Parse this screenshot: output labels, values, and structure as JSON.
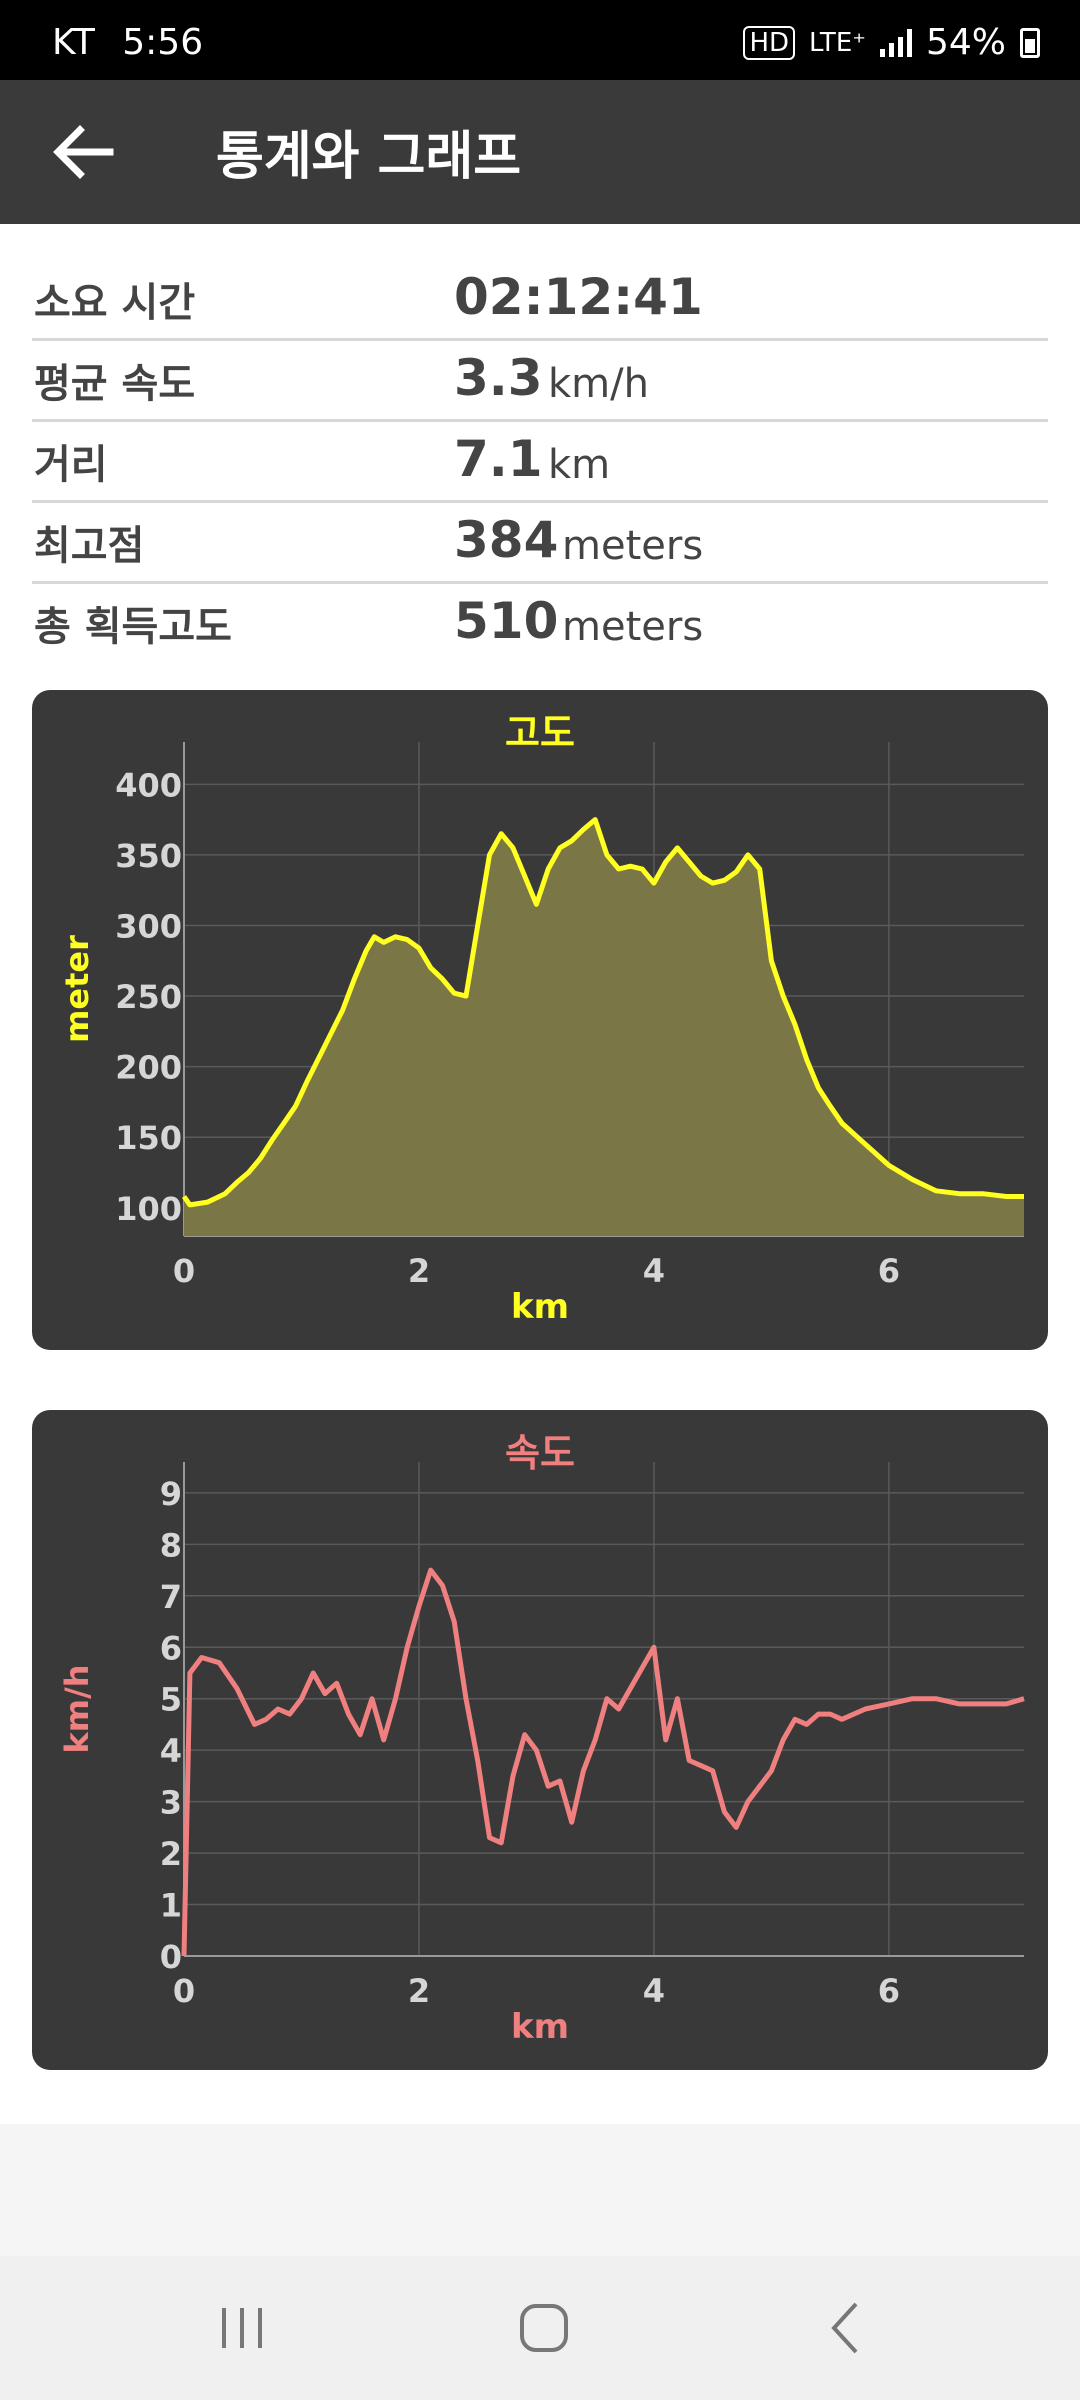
{
  "status_bar": {
    "carrier": "KT",
    "time": "5:56",
    "hd": "HD",
    "network": "LTE⁺",
    "battery": "54%"
  },
  "app_bar": {
    "back_icon": "arrow-left-icon",
    "title": "통계와 그래프"
  },
  "stats": [
    {
      "label": "소요 시간",
      "value": "02:12:41",
      "unit": ""
    },
    {
      "label": "평균 속도",
      "value": "3.3",
      "unit": "km/h"
    },
    {
      "label": "거리",
      "value": "7.1",
      "unit": "km"
    },
    {
      "label": "최고점",
      "value": "384",
      "unit": "meters"
    },
    {
      "label": "총 획득고도",
      "value": "510",
      "unit": "meters"
    }
  ],
  "colors": {
    "elevation_line": "#ffff22",
    "elevation_fill": "#7a7645",
    "speed_line": "#f08080",
    "card_bg": "#393939",
    "app_bar": "#3a3a3a"
  },
  "chart_data": [
    {
      "type": "area",
      "title": "고도",
      "xlabel": "km",
      "ylabel": "meter",
      "xlim": [
        0,
        7.15
      ],
      "ylim": [
        80,
        430
      ],
      "xticks": [
        0,
        2,
        4,
        6
      ],
      "yticks": [
        100,
        150,
        200,
        250,
        300,
        350,
        400
      ],
      "grid": true,
      "x": [
        0,
        0.05,
        0.2,
        0.35,
        0.45,
        0.55,
        0.65,
        0.75,
        0.85,
        0.95,
        1.05,
        1.2,
        1.35,
        1.45,
        1.55,
        1.62,
        1.7,
        1.8,
        1.9,
        2.0,
        2.1,
        2.2,
        2.3,
        2.4,
        2.5,
        2.6,
        2.7,
        2.8,
        2.9,
        3.0,
        3.1,
        3.2,
        3.3,
        3.4,
        3.5,
        3.6,
        3.7,
        3.8,
        3.9,
        4.0,
        4.1,
        4.2,
        4.3,
        4.4,
        4.5,
        4.6,
        4.7,
        4.8,
        4.9,
        5.0,
        5.1,
        5.2,
        5.3,
        5.4,
        5.5,
        5.6,
        5.8,
        6.0,
        6.2,
        6.4,
        6.6,
        6.8,
        7.0,
        7.15
      ],
      "values": [
        108,
        102,
        104,
        110,
        118,
        125,
        135,
        148,
        160,
        172,
        190,
        215,
        240,
        262,
        282,
        292,
        288,
        292,
        290,
        284,
        270,
        262,
        252,
        250,
        300,
        350,
        365,
        355,
        335,
        315,
        340,
        355,
        360,
        368,
        375,
        350,
        340,
        342,
        340,
        330,
        345,
        355,
        345,
        335,
        330,
        332,
        338,
        350,
        340,
        275,
        250,
        230,
        205,
        185,
        172,
        160,
        145,
        130,
        120,
        112,
        110,
        110,
        108,
        108
      ]
    },
    {
      "type": "line",
      "title": "속도",
      "xlabel": "km",
      "ylabel": "km/h",
      "xlim": [
        0,
        7.15
      ],
      "ylim": [
        0,
        9.6
      ],
      "xticks": [
        0,
        2,
        4,
        6
      ],
      "yticks": [
        0,
        1,
        2,
        3,
        4,
        5,
        6,
        7,
        8,
        9
      ],
      "grid": true,
      "x": [
        0,
        0.05,
        0.15,
        0.3,
        0.45,
        0.6,
        0.7,
        0.8,
        0.9,
        1.0,
        1.1,
        1.2,
        1.3,
        1.4,
        1.5,
        1.6,
        1.7,
        1.8,
        1.9,
        2.0,
        2.1,
        2.2,
        2.3,
        2.4,
        2.5,
        2.6,
        2.7,
        2.8,
        2.9,
        3.0,
        3.1,
        3.2,
        3.3,
        3.4,
        3.5,
        3.6,
        3.7,
        3.8,
        3.9,
        4.0,
        4.1,
        4.2,
        4.3,
        4.4,
        4.5,
        4.6,
        4.7,
        4.8,
        4.9,
        5.0,
        5.1,
        5.2,
        5.3,
        5.4,
        5.5,
        5.6,
        5.8,
        6.0,
        6.2,
        6.4,
        6.6,
        6.8,
        7.0,
        7.15
      ],
      "values": [
        0,
        5.5,
        5.8,
        5.7,
        5.2,
        4.5,
        4.6,
        4.8,
        4.7,
        5.0,
        5.5,
        5.1,
        5.3,
        4.7,
        4.3,
        5.0,
        4.2,
        5.0,
        6.0,
        6.8,
        7.5,
        7.2,
        6.5,
        5.0,
        3.8,
        2.3,
        2.2,
        3.5,
        4.3,
        4.0,
        3.3,
        3.4,
        2.6,
        3.6,
        4.2,
        5.0,
        4.8,
        5.2,
        5.6,
        6.0,
        4.2,
        5.0,
        3.8,
        3.7,
        3.6,
        2.8,
        2.5,
        3.0,
        3.3,
        3.6,
        4.2,
        4.6,
        4.5,
        4.7,
        4.7,
        4.6,
        4.8,
        4.9,
        5.0,
        5.0,
        4.9,
        4.9,
        4.9,
        5.0
      ]
    }
  ]
}
